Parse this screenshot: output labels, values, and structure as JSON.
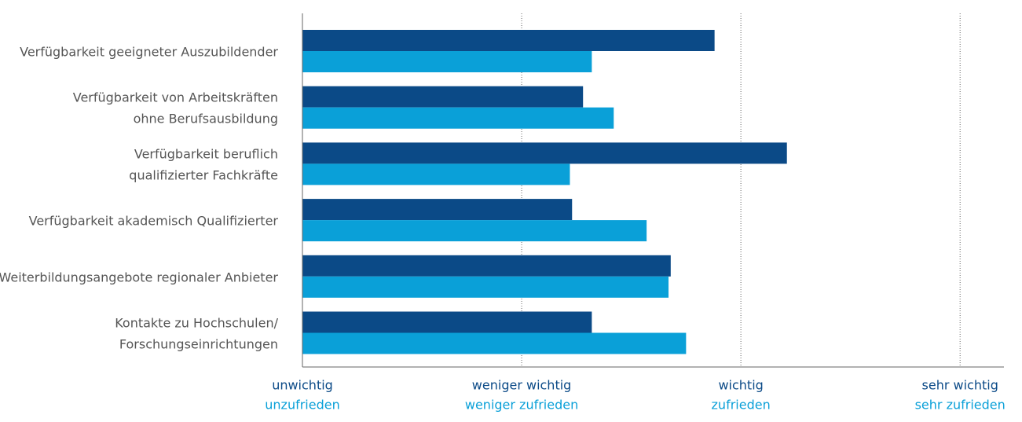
{
  "chart_data": {
    "type": "bar",
    "orientation": "horizontal",
    "categories": [
      [
        "Verfügbarkeit geeigneter Auszubildender"
      ],
      [
        "Verfügbarkeit von Arbeitskräften",
        "ohne Berufsausbildung"
      ],
      [
        "Verfügbarkeit beruflich",
        "qualifizierter Fachkräfte"
      ],
      [
        "Verfügbarkeit akademisch Qualifizierter"
      ],
      [
        "Weiterbildungsangebote regionaler Anbieter"
      ],
      [
        "Kontakte zu Hochschulen/",
        "Forschungseinrichtungen"
      ]
    ],
    "series": [
      {
        "color": "#0b4a87",
        "values": [
          2.88,
          2.28,
          3.21,
          2.23,
          2.68,
          2.32
        ]
      },
      {
        "color": "#0aa0d8",
        "values": [
          2.32,
          2.42,
          2.22,
          2.57,
          2.67,
          2.75
        ]
      }
    ],
    "xlim": [
      1,
      4.2
    ],
    "xticks": [
      {
        "value": 1,
        "label": "unwichtig"
      },
      {
        "value": 2,
        "label": "weniger wichtig"
      },
      {
        "value": 3,
        "label": "wichtig"
      },
      {
        "value": 4,
        "label": "sehr wichtig"
      }
    ],
    "x2ticks": [
      {
        "value": 1,
        "label": "unzufrieden"
      },
      {
        "value": 2,
        "label": "weniger zufrieden"
      },
      {
        "value": 3,
        "label": "zufrieden"
      },
      {
        "value": 4,
        "label": "sehr zufrieden"
      }
    ],
    "grid": true
  }
}
